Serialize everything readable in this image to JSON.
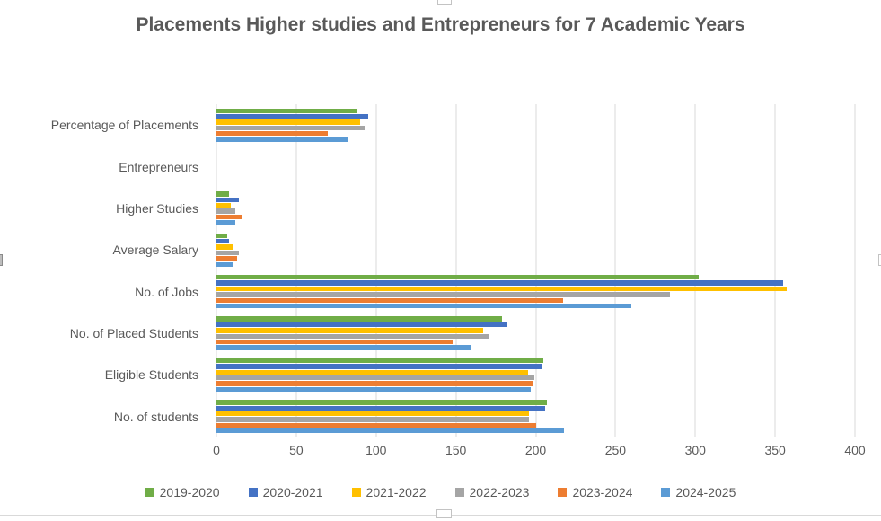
{
  "title": "Placements Higher studies and Entrepreneurs for 7 Academic Years",
  "colors": {
    "title_text": "#595959",
    "axis_text": "#595959",
    "gridline": "#d9d9d9",
    "chart_border": "#d9d9d9"
  },
  "chart_data": {
    "type": "bar",
    "orientation": "horizontal",
    "title": "Placements Higher studies and Entrepreneurs for 7 Academic Years",
    "categories": [
      "Percentage of Placements",
      "Entrepreneurs",
      "Higher Studies",
      "Average Salary",
      "No. of Jobs",
      "No. of Placed Students",
      "Eligible Students",
      "No. of students"
    ],
    "series": [
      {
        "name": "2019-2020",
        "color": "#70AD47",
        "values": [
          88,
          0,
          8,
          7,
          302,
          179,
          205,
          207
        ]
      },
      {
        "name": "2020-2021",
        "color": "#4472C4",
        "values": [
          95,
          0,
          14,
          8,
          355,
          182,
          204,
          206
        ]
      },
      {
        "name": "2021-2022",
        "color": "#FFC000",
        "values": [
          90,
          0,
          9,
          10,
          357,
          167,
          195,
          196
        ]
      },
      {
        "name": "2022-2023",
        "color": "#A5A5A5",
        "values": [
          93,
          0,
          12,
          14,
          284,
          171,
          199,
          196
        ]
      },
      {
        "name": "2023-2024",
        "color": "#ED7D31",
        "values": [
          70,
          0,
          16,
          13,
          217,
          148,
          198,
          200
        ]
      },
      {
        "name": "2024-2025",
        "color": "#5B9BD5",
        "values": [
          82,
          0,
          12,
          10,
          260,
          159,
          197,
          218
        ]
      }
    ],
    "x_ticks": [
      0,
      50,
      100,
      150,
      200,
      250,
      300,
      350,
      400
    ],
    "xlim": [
      0,
      400
    ],
    "grid": "vertical",
    "legend_position": "bottom"
  }
}
